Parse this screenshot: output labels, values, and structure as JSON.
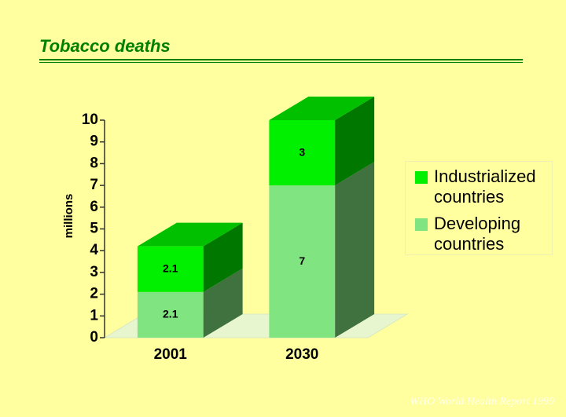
{
  "chart_data": {
    "type": "bar3d_stacked",
    "title": "Tobacco deaths",
    "ylabel": "millions",
    "categories": [
      "2001",
      "2030"
    ],
    "series": [
      {
        "name": "Developing countries",
        "color": "#80e480",
        "values": [
          2.1,
          7
        ]
      },
      {
        "name": "Industrialized countries",
        "color": "#00f000",
        "values": [
          2.1,
          3
        ]
      }
    ],
    "ylim": [
      0,
      10
    ],
    "yticks": [
      0,
      1,
      2,
      3,
      4,
      5,
      6,
      7,
      8,
      9,
      10
    ],
    "footer": "WHO World Health Report 1999"
  }
}
